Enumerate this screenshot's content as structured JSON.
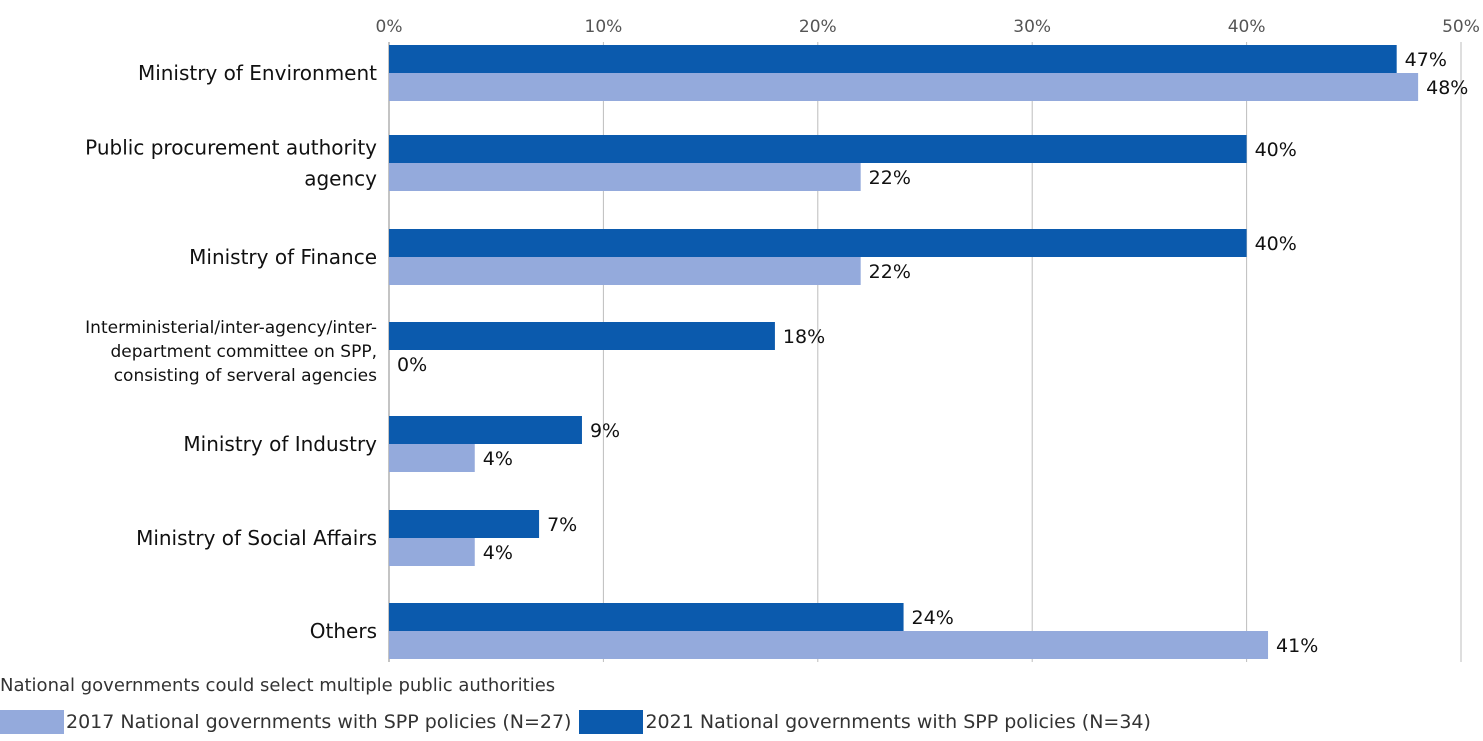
{
  "chart_data": {
    "type": "bar",
    "orientation": "horizontal",
    "categories": [
      [
        "Ministry of Environment"
      ],
      [
        "Public procurement authority",
        "agency"
      ],
      [
        "Ministry of Finance"
      ],
      [
        "Interministerial/inter-agency/inter-",
        "department committee on SPP,",
        "consisting of serveral agencies"
      ],
      [
        "Ministry of Industry"
      ],
      [
        "Ministry of Social Affairs"
      ],
      [
        "Others"
      ]
    ],
    "series": [
      {
        "name": "2021 National governments with SPP policies (N=34)",
        "color": "#0b5aad",
        "values": [
          47,
          40,
          40,
          18,
          9,
          7,
          24
        ],
        "labels": [
          "47%",
          "40%",
          "40%",
          "18%",
          "9%",
          "7%",
          "24%"
        ]
      },
      {
        "name": "2017 National governments with SPP policies (N=27)",
        "color": "#94aadc",
        "values": [
          48,
          22,
          22,
          0,
          4,
          4,
          41
        ],
        "labels": [
          "48%",
          "22%",
          "22%",
          "0%",
          "4%",
          "4%",
          "41%"
        ]
      }
    ],
    "xlim": [
      0,
      50
    ],
    "xticks": [
      0,
      10,
      20,
      30,
      40,
      50
    ],
    "xtick_labels": [
      "0%",
      "10%",
      "20%",
      "30%",
      "40%",
      "50%"
    ],
    "xaxis_position": "top",
    "grid": true,
    "legend_position": "bottom-left",
    "note": "National governments could select multiple public authorities"
  }
}
